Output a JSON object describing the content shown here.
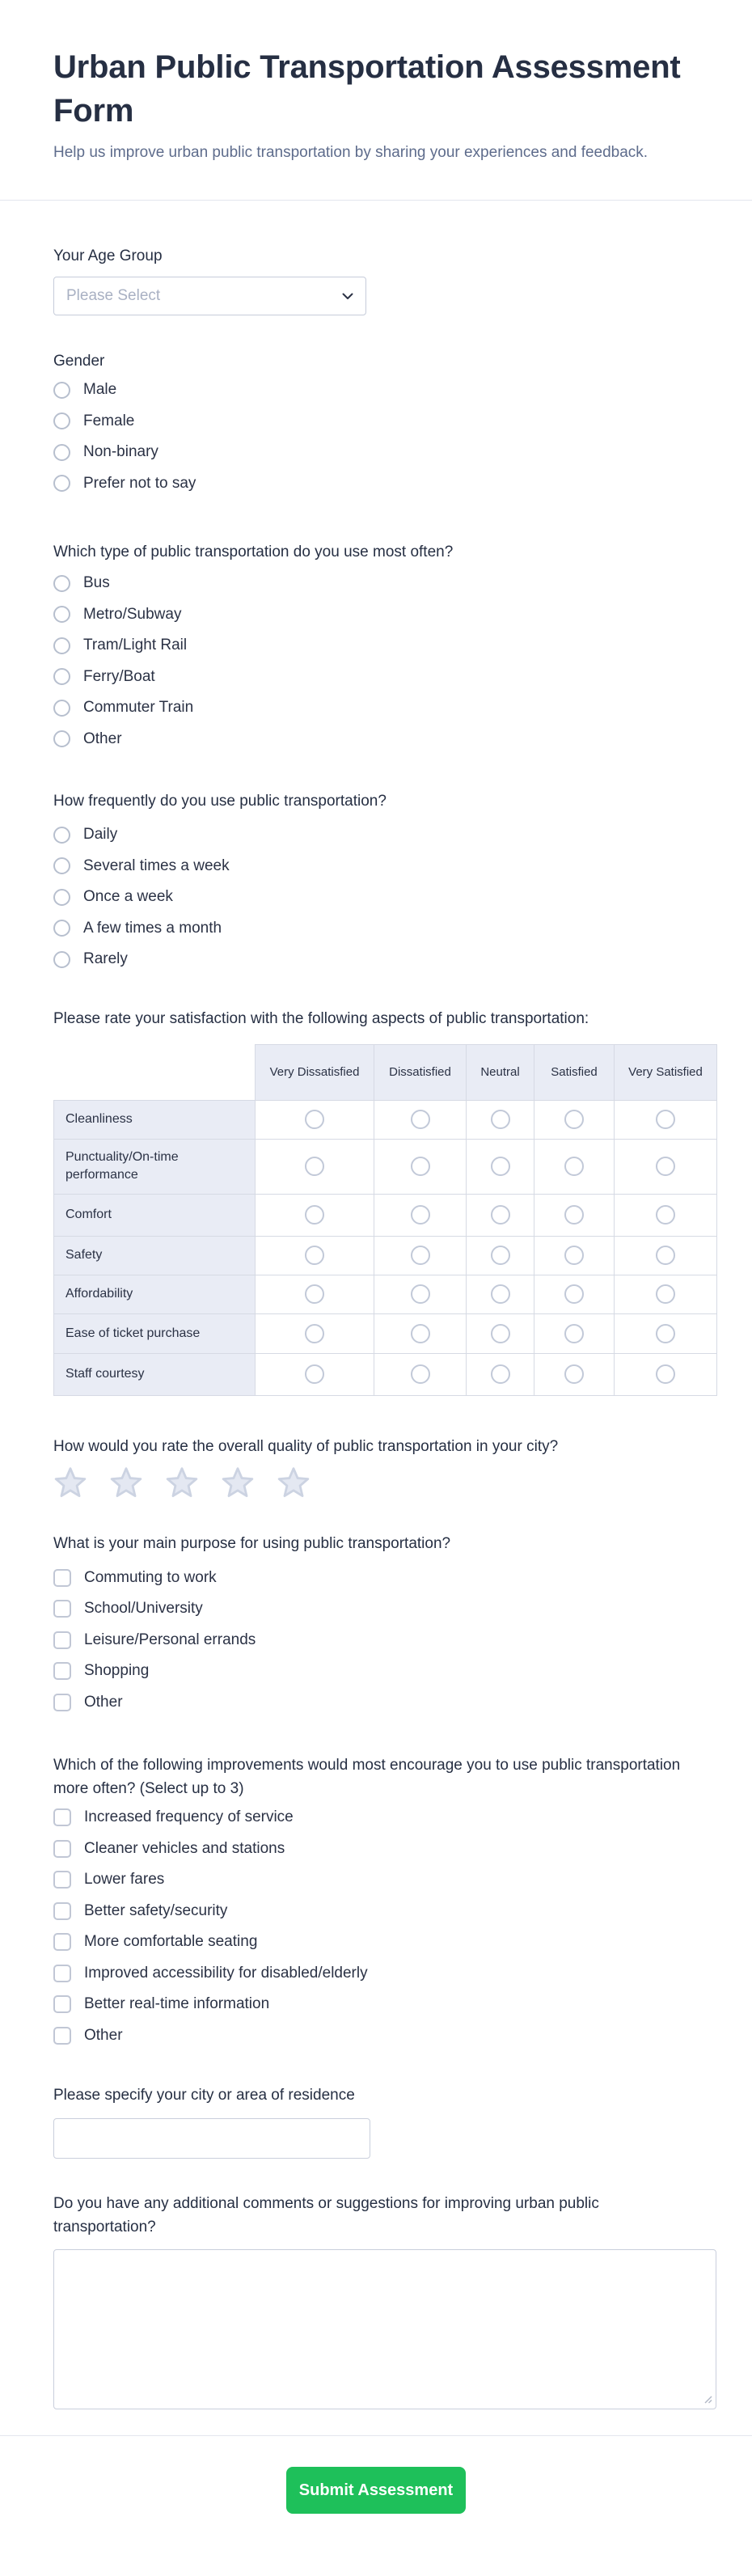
{
  "header": {
    "title": "Urban Public Transportation Assessment Form",
    "subtitle": "Help us improve urban public transportation by sharing your experiences and feedback."
  },
  "age": {
    "label": "Your Age Group",
    "placeholder": "Please Select"
  },
  "gender": {
    "label": "Gender",
    "options": [
      "Male",
      "Female",
      "Non-binary",
      "Prefer not to say"
    ]
  },
  "transport_type": {
    "label": "Which type of public transportation do you use most often?",
    "options": [
      "Bus",
      "Metro/Subway",
      "Tram/Light Rail",
      "Ferry/Boat",
      "Commuter Train",
      "Other"
    ]
  },
  "frequency": {
    "label": "How frequently do you use public transportation?",
    "options": [
      "Daily",
      "Several times a week",
      "Once a week",
      "A few times a month",
      "Rarely"
    ]
  },
  "matrix": {
    "label": "Please rate your satisfaction with the following aspects of public transportation:",
    "columns": [
      "Very Dissatisfied",
      "Dissatisfied",
      "Neutral",
      "Satisfied",
      "Very Satisfied"
    ],
    "rows": [
      "Cleanliness",
      "Punctuality/On-time performance",
      "Comfort",
      "Safety",
      "Affordability",
      "Ease of ticket purchase",
      "Staff courtesy"
    ]
  },
  "overall_rating": {
    "label": "How would you rate the overall quality of public transportation in your city?",
    "stars": 5
  },
  "purpose": {
    "label": "What is your main purpose for using public transportation?",
    "options": [
      "Commuting to work",
      "School/University",
      "Leisure/Personal errands",
      "Shopping",
      "Other"
    ]
  },
  "improvements": {
    "label": "Which of the following improvements would most encourage you to use public transportation more often? (Select up to 3)",
    "options": [
      "Increased frequency of service",
      "Cleaner vehicles and stations",
      "Lower fares",
      "Better safety/security",
      "More comfortable seating",
      "Improved accessibility for disabled/elderly",
      "Better real-time information",
      "Other"
    ]
  },
  "city": {
    "label": "Please specify your city or area of residence",
    "value": ""
  },
  "comments": {
    "label": "Do you have any additional comments or suggestions for improving urban public transportation?",
    "value": ""
  },
  "submit": {
    "label": "Submit Assessment"
  },
  "colors": {
    "accent_green": "#1ec05a",
    "heading_text": "#262f43",
    "body_text": "#2b3245",
    "subtitle_text": "#5e6c8c",
    "placeholder_text": "#a9b1c3",
    "input_border": "#c9cfdc",
    "control_border": "#b7bfce",
    "table_border": "#d6dae4",
    "table_header_bg": "#e9ecf5",
    "star_fill": "#e4e8f2",
    "star_stroke": "#ccd3e2",
    "divider": "#e3e6ee"
  }
}
